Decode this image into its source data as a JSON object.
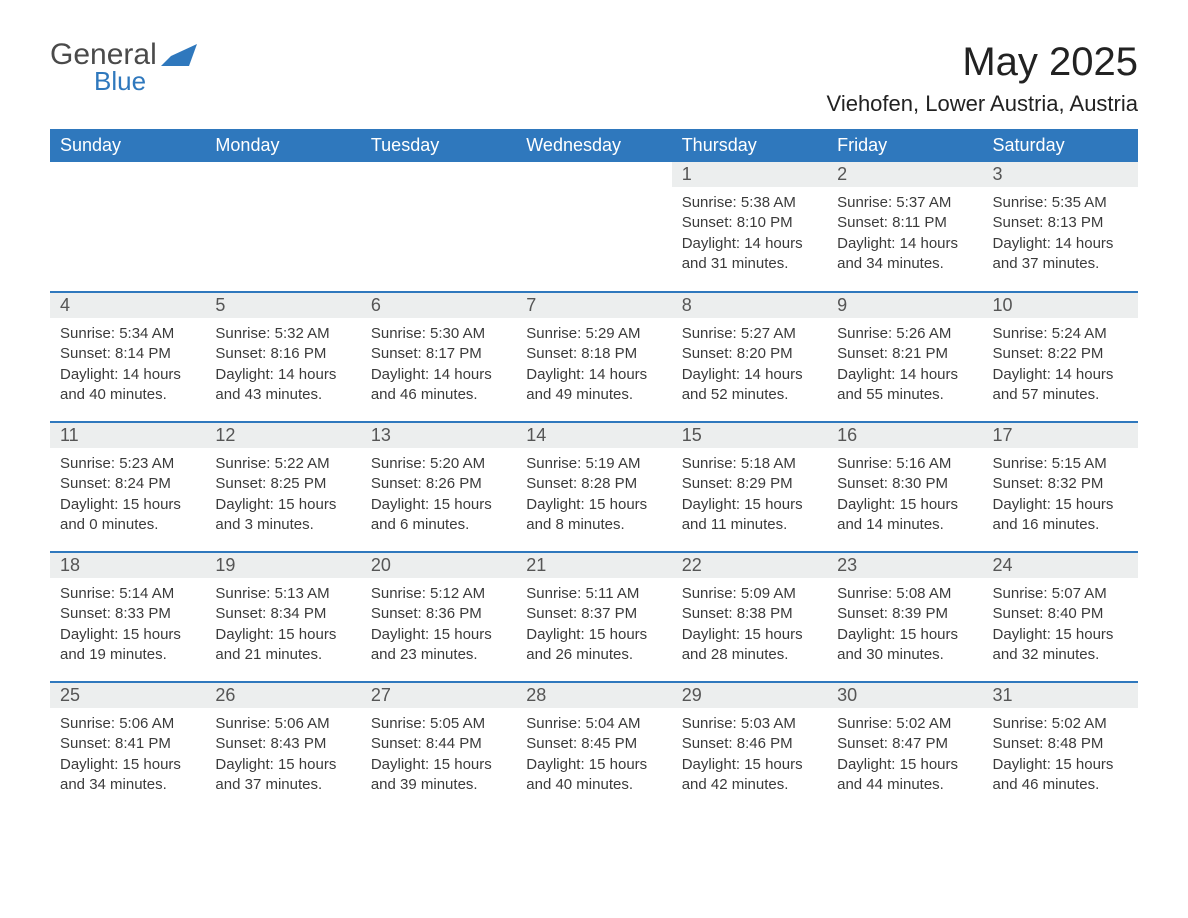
{
  "brand": {
    "word1": "General",
    "word2": "Blue",
    "accent_color": "#2f78bd"
  },
  "header": {
    "month_title": "May 2025",
    "location": "Viehofen, Lower Austria, Austria"
  },
  "weekdays": [
    "Sunday",
    "Monday",
    "Tuesday",
    "Wednesday",
    "Thursday",
    "Friday",
    "Saturday"
  ],
  "colors": {
    "header_bg": "#2f78bd",
    "header_text": "#ffffff",
    "daynum_bg": "#eceeee",
    "row_border": "#2f78bd",
    "body_text": "#3b3b3b",
    "page_bg": "#ffffff"
  },
  "typography": {
    "month_title_fontsize": 40,
    "location_fontsize": 22,
    "weekday_fontsize": 18,
    "daynum_fontsize": 18,
    "body_fontsize": 15
  },
  "calendar": {
    "type": "table",
    "rows": 5,
    "cols": 7,
    "cells": [
      [
        null,
        null,
        null,
        null,
        {
          "day": "1",
          "sunrise": "5:38 AM",
          "sunset": "8:10 PM",
          "daylight": "14 hours and 31 minutes."
        },
        {
          "day": "2",
          "sunrise": "5:37 AM",
          "sunset": "8:11 PM",
          "daylight": "14 hours and 34 minutes."
        },
        {
          "day": "3",
          "sunrise": "5:35 AM",
          "sunset": "8:13 PM",
          "daylight": "14 hours and 37 minutes."
        }
      ],
      [
        {
          "day": "4",
          "sunrise": "5:34 AM",
          "sunset": "8:14 PM",
          "daylight": "14 hours and 40 minutes."
        },
        {
          "day": "5",
          "sunrise": "5:32 AM",
          "sunset": "8:16 PM",
          "daylight": "14 hours and 43 minutes."
        },
        {
          "day": "6",
          "sunrise": "5:30 AM",
          "sunset": "8:17 PM",
          "daylight": "14 hours and 46 minutes."
        },
        {
          "day": "7",
          "sunrise": "5:29 AM",
          "sunset": "8:18 PM",
          "daylight": "14 hours and 49 minutes."
        },
        {
          "day": "8",
          "sunrise": "5:27 AM",
          "sunset": "8:20 PM",
          "daylight": "14 hours and 52 minutes."
        },
        {
          "day": "9",
          "sunrise": "5:26 AM",
          "sunset": "8:21 PM",
          "daylight": "14 hours and 55 minutes."
        },
        {
          "day": "10",
          "sunrise": "5:24 AM",
          "sunset": "8:22 PM",
          "daylight": "14 hours and 57 minutes."
        }
      ],
      [
        {
          "day": "11",
          "sunrise": "5:23 AM",
          "sunset": "8:24 PM",
          "daylight": "15 hours and 0 minutes."
        },
        {
          "day": "12",
          "sunrise": "5:22 AM",
          "sunset": "8:25 PM",
          "daylight": "15 hours and 3 minutes."
        },
        {
          "day": "13",
          "sunrise": "5:20 AM",
          "sunset": "8:26 PM",
          "daylight": "15 hours and 6 minutes."
        },
        {
          "day": "14",
          "sunrise": "5:19 AM",
          "sunset": "8:28 PM",
          "daylight": "15 hours and 8 minutes."
        },
        {
          "day": "15",
          "sunrise": "5:18 AM",
          "sunset": "8:29 PM",
          "daylight": "15 hours and 11 minutes."
        },
        {
          "day": "16",
          "sunrise": "5:16 AM",
          "sunset": "8:30 PM",
          "daylight": "15 hours and 14 minutes."
        },
        {
          "day": "17",
          "sunrise": "5:15 AM",
          "sunset": "8:32 PM",
          "daylight": "15 hours and 16 minutes."
        }
      ],
      [
        {
          "day": "18",
          "sunrise": "5:14 AM",
          "sunset": "8:33 PM",
          "daylight": "15 hours and 19 minutes."
        },
        {
          "day": "19",
          "sunrise": "5:13 AM",
          "sunset": "8:34 PM",
          "daylight": "15 hours and 21 minutes."
        },
        {
          "day": "20",
          "sunrise": "5:12 AM",
          "sunset": "8:36 PM",
          "daylight": "15 hours and 23 minutes."
        },
        {
          "day": "21",
          "sunrise": "5:11 AM",
          "sunset": "8:37 PM",
          "daylight": "15 hours and 26 minutes."
        },
        {
          "day": "22",
          "sunrise": "5:09 AM",
          "sunset": "8:38 PM",
          "daylight": "15 hours and 28 minutes."
        },
        {
          "day": "23",
          "sunrise": "5:08 AM",
          "sunset": "8:39 PM",
          "daylight": "15 hours and 30 minutes."
        },
        {
          "day": "24",
          "sunrise": "5:07 AM",
          "sunset": "8:40 PM",
          "daylight": "15 hours and 32 minutes."
        }
      ],
      [
        {
          "day": "25",
          "sunrise": "5:06 AM",
          "sunset": "8:41 PM",
          "daylight": "15 hours and 34 minutes."
        },
        {
          "day": "26",
          "sunrise": "5:06 AM",
          "sunset": "8:43 PM",
          "daylight": "15 hours and 37 minutes."
        },
        {
          "day": "27",
          "sunrise": "5:05 AM",
          "sunset": "8:44 PM",
          "daylight": "15 hours and 39 minutes."
        },
        {
          "day": "28",
          "sunrise": "5:04 AM",
          "sunset": "8:45 PM",
          "daylight": "15 hours and 40 minutes."
        },
        {
          "day": "29",
          "sunrise": "5:03 AM",
          "sunset": "8:46 PM",
          "daylight": "15 hours and 42 minutes."
        },
        {
          "day": "30",
          "sunrise": "5:02 AM",
          "sunset": "8:47 PM",
          "daylight": "15 hours and 44 minutes."
        },
        {
          "day": "31",
          "sunrise": "5:02 AM",
          "sunset": "8:48 PM",
          "daylight": "15 hours and 46 minutes."
        }
      ]
    ]
  },
  "labels": {
    "sunrise_prefix": "Sunrise: ",
    "sunset_prefix": "Sunset: ",
    "daylight_prefix": "Daylight: "
  }
}
